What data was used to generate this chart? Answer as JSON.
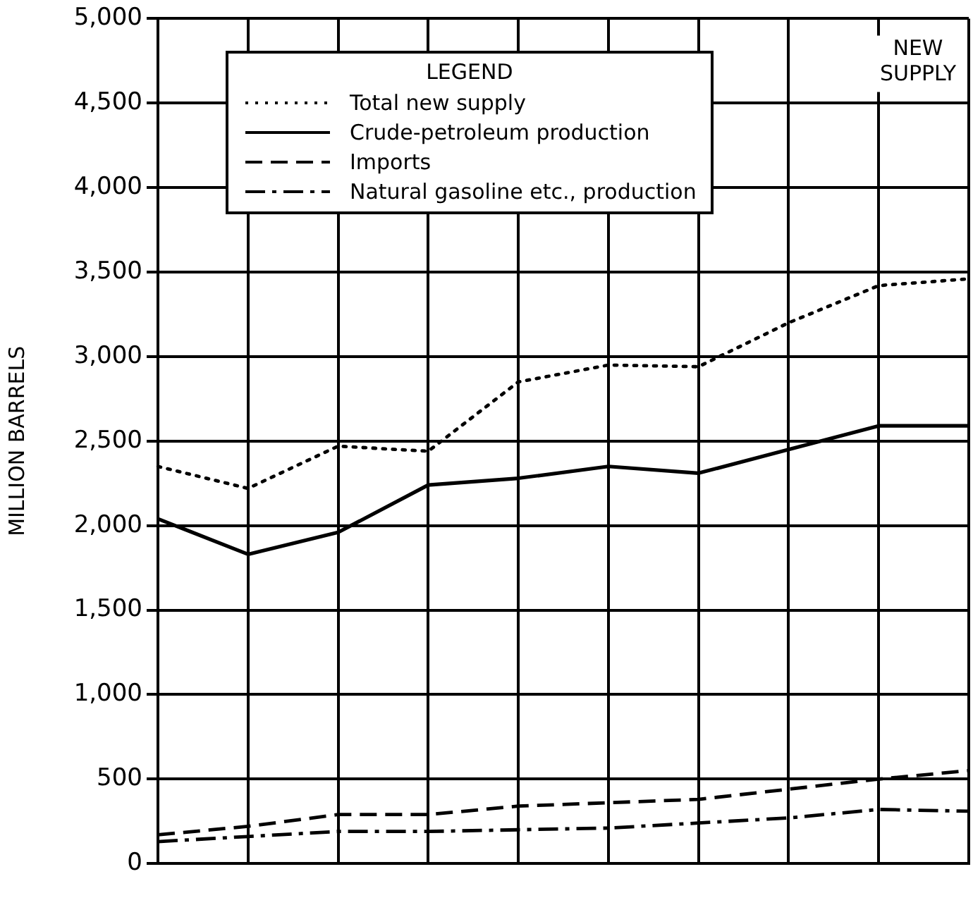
{
  "chart_data": {
    "type": "line",
    "ylabel": "MILLION BARRELS",
    "legend_title": "LEGEND",
    "annotations": [
      "NEW SUPPLY"
    ],
    "categories": [
      null,
      null,
      null,
      null,
      null,
      null,
      null,
      null,
      null,
      null
    ],
    "series": [
      {
        "name": "Total new supply",
        "color": "#000000",
        "line_style": "dotted",
        "values": [
          2350,
          2220,
          2470,
          2440,
          2850,
          2950,
          2940,
          3200,
          3420,
          3460
        ]
      },
      {
        "name": "Crude-petroleum production",
        "color": "#000000",
        "line_style": "solid",
        "values": [
          2040,
          1830,
          1960,
          2240,
          2280,
          2350,
          2310,
          2450,
          2590,
          2590
        ]
      },
      {
        "name": "Imports",
        "color": "#000000",
        "line_style": "dashed",
        "values": [
          170,
          220,
          290,
          290,
          340,
          360,
          380,
          440,
          500,
          550
        ]
      },
      {
        "name": "Natural gasoline etc., production",
        "color": "#000000",
        "line_style": "dashdot",
        "values": [
          130,
          160,
          190,
          190,
          200,
          210,
          240,
          270,
          320,
          310
        ]
      }
    ],
    "ylim": [
      0,
      5000
    ],
    "yticks": [
      {
        "value": 0,
        "label": "0"
      },
      {
        "value": 500,
        "label": "500"
      },
      {
        "value": 1000,
        "label": "1,000"
      },
      {
        "value": 1500,
        "label": "1,500"
      },
      {
        "value": 2000,
        "label": "2,000"
      },
      {
        "value": 2500,
        "label": "2,500"
      },
      {
        "value": 3000,
        "label": "3,000"
      },
      {
        "value": 3500,
        "label": "3,500"
      },
      {
        "value": 4000,
        "label": "4,000"
      },
      {
        "value": 4500,
        "label": "4,500"
      },
      {
        "value": 5000,
        "label": "5,000"
      }
    ],
    "grid": true,
    "legend": "top left",
    "marker": "none"
  }
}
